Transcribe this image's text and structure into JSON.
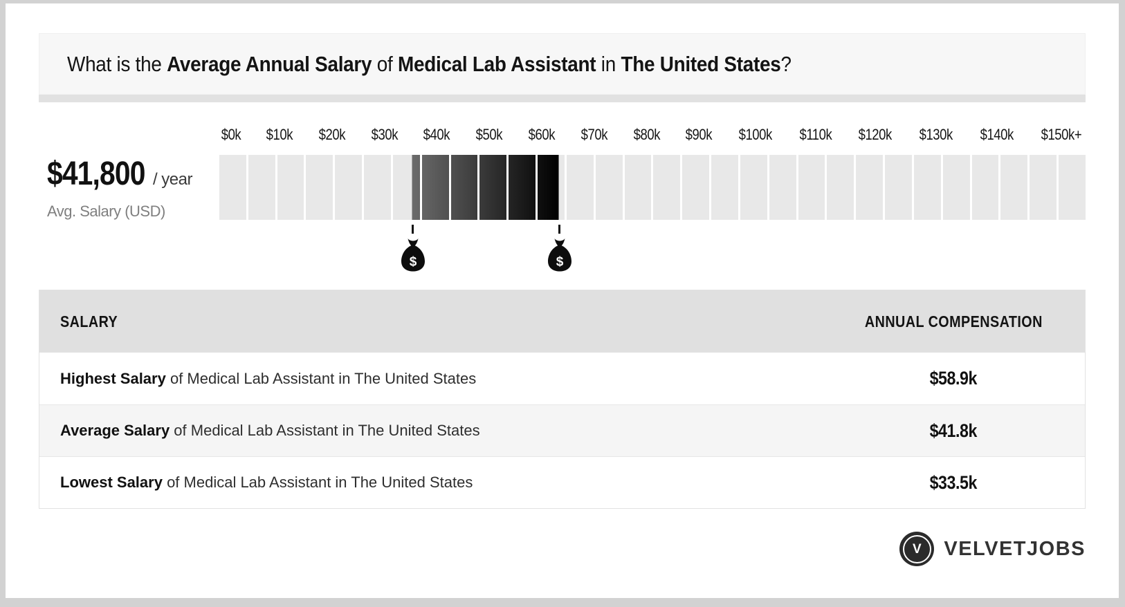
{
  "title": {
    "prefix": "What is the ",
    "bold_salary": "Average Annual Salary",
    "mid1": " of ",
    "bold_job": "Medical Lab Assistant",
    "mid2": " in ",
    "bold_region": "The United States",
    "suffix": "?"
  },
  "stat": {
    "amount": "$41,800",
    "per": "/ year",
    "caption": "Avg. Salary (USD)"
  },
  "chart_data": {
    "type": "bar",
    "title": "What is the Average Annual Salary of Medical Lab Assistant in The United States?",
    "axis_ticks": [
      "$0k",
      "$10k",
      "$20k",
      "$30k",
      "$40k",
      "$50k",
      "$60k",
      "$70k",
      "$80k",
      "$90k",
      "$100k",
      "$110k",
      "$120k",
      "$130k",
      "$140k",
      "$150k+"
    ],
    "axis_range_k": [
      0,
      150
    ],
    "segment_size_k": 5,
    "segment_count": 30,
    "lowest_k": 33.5,
    "average_k": 41.8,
    "highest_k": 58.9,
    "highlight_range_k": {
      "low": 33.5,
      "high": 58.9
    },
    "colors": {
      "track": "#e8e8e8",
      "highlight_start": "#6b6b6b",
      "highlight_end": "#000000",
      "marker": "#0d0d0d"
    },
    "markers": [
      {
        "name": "lowest-salary",
        "value_k": 33.5
      },
      {
        "name": "highest-salary",
        "value_k": 58.9
      }
    ]
  },
  "table": {
    "headers": [
      "SALARY",
      "ANNUAL COMPENSATION"
    ],
    "rows": [
      {
        "label_bold": "Highest Salary",
        "label_rest": " of Medical Lab Assistant in The United States",
        "value": "$58.9k"
      },
      {
        "label_bold": "Average Salary",
        "label_rest": " of Medical Lab Assistant in The United States",
        "value": "$41.8k"
      },
      {
        "label_bold": "Lowest Salary",
        "label_rest": " of Medical Lab Assistant in The United States",
        "value": "$33.5k"
      }
    ]
  },
  "logo": {
    "monogram": "V",
    "text": "VELVETJOBS"
  },
  "icons": {
    "dollar_glyph": "$"
  }
}
